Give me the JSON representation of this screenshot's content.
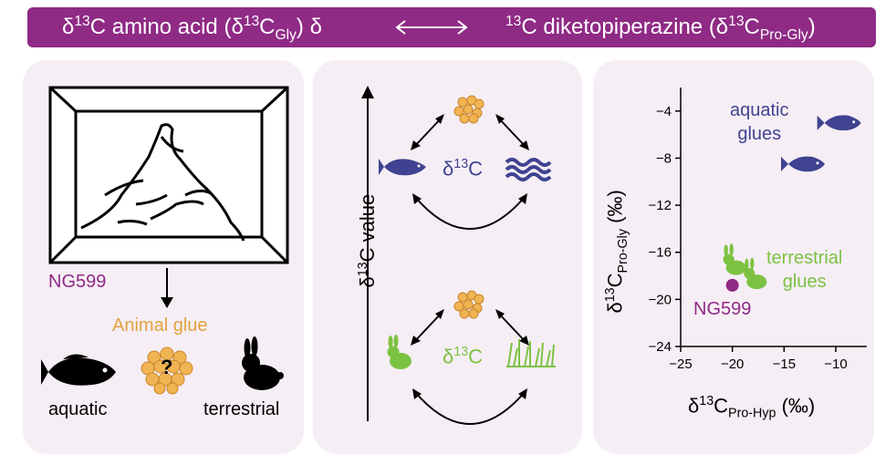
{
  "banner": {
    "left_delta": "δ",
    "left_sup": "13",
    "left_text": "C amino acid (δ",
    "left_sup2": "13",
    "left_c": "C",
    "left_sub": "Gly",
    "left_tail": ") δ",
    "right_sup": "13",
    "right_text": "C diketopiperazine (δ",
    "right_sup2": "13",
    "right_c": "C",
    "right_sub": "Pro-Gly",
    "right_tail": ")"
  },
  "panel1": {
    "sample_label": "NG599",
    "glue_label": "Animal glue",
    "question_mark": "?",
    "aquatic_label": "aquatic",
    "terrestrial_label": "terrestrial"
  },
  "panel2": {
    "axis_label_delta": "δ",
    "axis_label_sup": "13",
    "axis_label_rest": "C value",
    "top_label_delta": "δ",
    "top_label_sup": "13",
    "top_label_c": "C",
    "bottom_label_delta": "δ",
    "bottom_label_sup": "13",
    "bottom_label_c": "C"
  },
  "colors": {
    "banner": "#8f2a85",
    "panel_bg": "#f6eef5",
    "aquatic": "#3f4391",
    "terrestrial": "#7cc242",
    "glue": "#f0b452",
    "sample": "#8f2a85",
    "glue_text": "#e2a23c"
  },
  "chart_data": {
    "type": "scatter",
    "xlabel_delta": "δ",
    "xlabel_sup": "13",
    "xlabel_c": "C",
    "xlabel_sub": "Pro-Hyp",
    "xlabel_unit": "(‰)",
    "ylabel_delta": "δ",
    "ylabel_sup": "13",
    "ylabel_c": "C",
    "ylabel_sub": "Pro-Gly",
    "ylabel_unit": "(‰)",
    "xlim": [
      -25,
      -7
    ],
    "ylim": [
      -24,
      -2
    ],
    "xticks": [
      "−25",
      "−20",
      "−15",
      "−10"
    ],
    "xtick_values": [
      -25,
      -20,
      -15,
      -10
    ],
    "yticks": [
      "−4",
      "−8",
      "−12",
      "−16",
      "−20",
      "−24"
    ],
    "ytick_values": [
      -4,
      -8,
      -12,
      -16,
      -20,
      -24
    ],
    "aquatic_points": [
      {
        "x": -9.5,
        "y": -5.0
      },
      {
        "x": -13.0,
        "y": -8.5
      }
    ],
    "terrestrial_points": [
      {
        "x": -20.0,
        "y": -17.0
      },
      {
        "x": -18.0,
        "y": -18.2
      }
    ],
    "sample_point": {
      "x": -20.0,
      "y": -18.8
    },
    "annotations": {
      "aquatic_line1": "aquatic",
      "aquatic_line2": "glues",
      "terrestrial_line1": "terrestrial",
      "terrestrial_line2": "glues",
      "sample": "NG599"
    }
  }
}
